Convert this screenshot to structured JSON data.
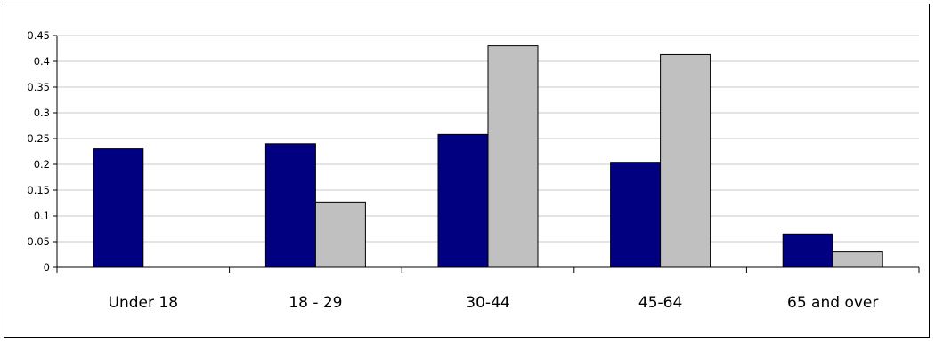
{
  "chart_data": {
    "type": "bar",
    "title": "",
    "xlabel": "",
    "ylabel": "",
    "categories": [
      "Under 18",
      "18 - 29",
      "30-44",
      "45-64",
      "65 and over"
    ],
    "series": [
      {
        "values": [
          0.23,
          0.24,
          0.258,
          0.204,
          0.065
        ],
        "color": "#000080"
      },
      {
        "values": [
          0,
          0.127,
          0.43,
          0.413,
          0.03
        ],
        "color": "#c0c0c0"
      }
    ],
    "ylim": [
      0,
      0.45
    ],
    "yticks": [
      "0",
      "0.05",
      "0.1",
      "0.15",
      "0.2",
      "0.25",
      "0.3",
      "0.35",
      "0.4",
      "0.45"
    ],
    "grid": true,
    "legend": "none"
  }
}
